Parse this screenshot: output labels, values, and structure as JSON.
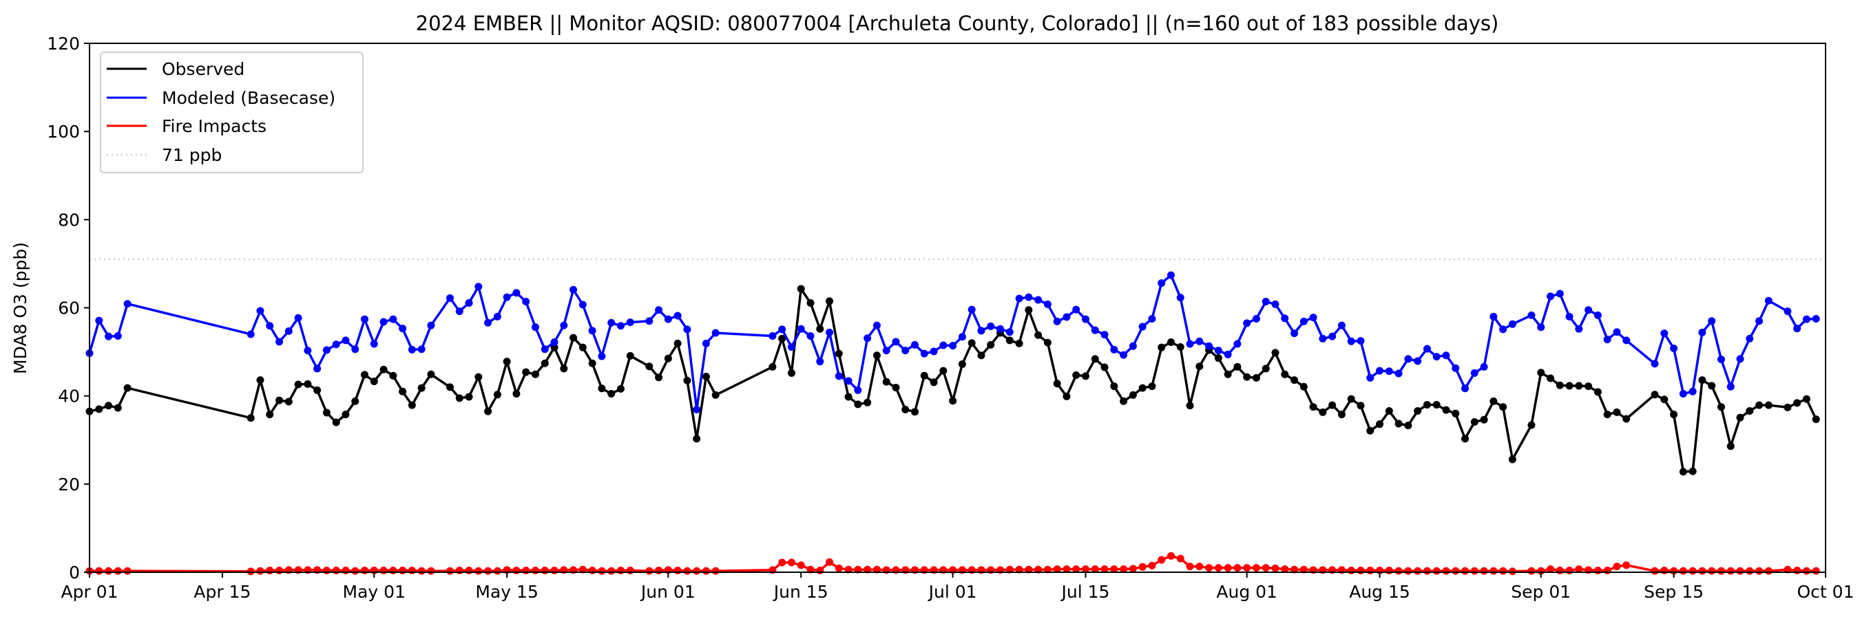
{
  "chart_data": {
    "type": "line",
    "title": "2024 EMBER || Monitor AQSID: 080077004 [Archuleta County, Colorado] || (n=160 out of 183 possible days)",
    "xlabel": "",
    "ylabel": "MDA8 O3 (ppb)",
    "x_unit": "days since 2024-04-01",
    "xlim": [
      0,
      183
    ],
    "ylim": [
      0,
      120
    ],
    "yticks": [
      "0",
      "20",
      "40",
      "60",
      "80",
      "100",
      "120"
    ],
    "xticks": [
      {
        "label": "Apr 01",
        "day": 0
      },
      {
        "label": "Apr 15",
        "day": 14
      },
      {
        "label": "May 01",
        "day": 30
      },
      {
        "label": "May 15",
        "day": 44
      },
      {
        "label": "Jun 01",
        "day": 61
      },
      {
        "label": "Jun 15",
        "day": 75
      },
      {
        "label": "Jul 01",
        "day": 91
      },
      {
        "label": "Jul 15",
        "day": 105
      },
      {
        "label": "Aug 01",
        "day": 122
      },
      {
        "label": "Aug 15",
        "day": 136
      },
      {
        "label": "Sep 01",
        "day": 153
      },
      {
        "label": "Sep 15",
        "day": 167
      },
      {
        "label": "Oct 01",
        "day": 183
      }
    ],
    "grid": false,
    "legend_position": "top-left",
    "x": [
      0,
      1,
      2,
      3,
      4,
      17,
      18,
      19,
      20,
      21,
      22,
      23,
      24,
      25,
      26,
      27,
      28,
      29,
      30,
      31,
      32,
      33,
      34,
      35,
      36,
      38,
      39,
      40,
      41,
      42,
      43,
      44,
      45,
      46,
      47,
      48,
      49,
      50,
      51,
      52,
      53,
      54,
      55,
      56,
      57,
      59,
      60,
      61,
      62,
      63,
      64,
      65,
      66,
      72,
      73,
      74,
      75,
      76,
      77,
      78,
      79,
      80,
      81,
      82,
      83,
      84,
      85,
      86,
      87,
      88,
      89,
      90,
      91,
      92,
      93,
      94,
      95,
      96,
      97,
      98,
      99,
      100,
      101,
      102,
      103,
      104,
      105,
      106,
      107,
      108,
      109,
      110,
      111,
      112,
      113,
      114,
      115,
      116,
      117,
      118,
      119,
      120,
      121,
      122,
      123,
      124,
      125,
      126,
      127,
      128,
      129,
      130,
      131,
      132,
      133,
      134,
      135,
      136,
      137,
      138,
      139,
      140,
      141,
      142,
      143,
      144,
      145,
      146,
      147,
      148,
      149,
      150,
      152,
      153,
      154,
      155,
      156,
      157,
      158,
      159,
      160,
      161,
      162,
      165,
      166,
      167,
      168,
      169,
      170,
      171,
      172,
      173,
      174,
      175,
      176,
      177,
      179,
      180,
      181,
      182
    ],
    "series": [
      {
        "name": "Observed",
        "color": "#000000",
        "values": [
          36.5,
          37,
          37.8,
          37.3,
          41.8,
          35,
          43.6,
          35.8,
          39,
          38.7,
          42.6,
          42.7,
          41.3,
          36.2,
          34,
          35.8,
          38.8,
          44.8,
          43.3,
          46,
          44.6,
          41,
          37.9,
          41.8,
          44.9,
          42,
          39.5,
          39.8,
          44.3,
          36.5,
          40.3,
          47.8,
          40.5,
          45.4,
          44.9,
          47.4,
          51,
          46.2,
          53.2,
          51,
          47.4,
          41.7,
          40.5,
          41.6,
          49.1,
          46.7,
          44.2,
          48.5,
          51.9,
          43.5,
          30.3,
          44.4,
          40.2,
          46.6,
          53,
          45.2,
          64.3,
          61.1,
          55.2,
          61.5,
          49.6,
          39.8,
          38.1,
          38.5,
          49.2,
          43.2,
          41.9,
          36.9,
          36.4,
          44.6,
          43.1,
          45.7,
          38.9,
          47.2,
          52,
          49.2,
          51.6,
          54.3,
          52.6,
          51.9,
          59.5,
          53.8,
          52.1,
          42.8,
          39.9,
          44.7,
          44.5,
          48.4,
          46.5,
          42.2,
          38.8,
          40.2,
          41.8,
          42.2,
          51,
          52.2,
          51.1,
          37.8,
          46.7,
          50.4,
          48.6,
          44.9,
          46.6,
          44.3,
          44.1,
          46.2,
          49.8,
          44.9,
          43.6,
          42.1,
          37.5,
          36.3,
          37.9,
          35.8,
          39.3,
          37.8,
          32.1,
          33.6,
          36.6,
          33.7,
          33.3,
          36.6,
          38,
          38,
          36.8,
          36,
          30.3,
          34.1,
          34.6,
          38.8,
          37.5,
          25.6,
          33.4,
          45.3,
          44,
          42.4,
          42.3,
          42.3,
          42.2,
          40.9,
          35.8,
          36.3,
          34.8,
          40.3,
          39.2,
          35.8,
          22.8,
          22.9,
          43.6,
          42.3,
          37.5,
          28.6,
          35.1,
          36.6,
          37.9,
          37.9,
          37.4,
          38.4,
          39.3,
          34.7
        ]
      },
      {
        "name": "Modeled (Basecase)",
        "color": "#0000ff",
        "values": [
          49.7,
          57.1,
          53.5,
          53.6,
          60.9,
          54,
          59.3,
          55.9,
          52.3,
          54.7,
          57.7,
          50.3,
          46.2,
          50.4,
          51.7,
          52.6,
          50.6,
          57.4,
          51.8,
          56.8,
          57.4,
          55.3,
          50.5,
          50.6,
          56,
          62.2,
          59.2,
          61.1,
          64.8,
          56.6,
          58,
          62.4,
          63.4,
          61.4,
          55.6,
          50.6,
          52.2,
          56,
          64.1,
          60.7,
          54.8,
          49,
          56.6,
          55.9,
          56.7,
          57,
          59.5,
          57.4,
          58.2,
          55.1,
          36.9,
          51.9,
          54.3,
          53.6,
          55.1,
          51.1,
          55.2,
          53.6,
          47.8,
          54.4,
          44.5,
          43.4,
          41.3,
          53.1,
          56,
          50.3,
          52.3,
          50.3,
          51.6,
          49.6,
          50.1,
          51.5,
          51.4,
          53.4,
          59.6,
          54.8,
          55.8,
          55.2,
          54.5,
          62.1,
          62.4,
          61.8,
          60.8,
          56.9,
          57.9,
          59.6,
          57.4,
          54.9,
          53.9,
          50.5,
          49.3,
          51.3,
          55.7,
          57.5,
          65.6,
          67.4,
          62.3,
          51.8,
          52.4,
          51.3,
          50.3,
          49.4,
          51.8,
          56.5,
          57.5,
          61.4,
          60.8,
          57.6,
          54.2,
          56.9,
          57.8,
          53,
          53.5,
          56,
          52.4,
          52.5,
          44.1,
          45.7,
          45.6,
          45.1,
          48.4,
          47.9,
          50.7,
          48.9,
          49.2,
          46.3,
          41.7,
          45.2,
          46.6,
          58,
          55.1,
          56.3,
          58.3,
          55.6,
          62.6,
          63.2,
          58,
          55.2,
          59.5,
          58.3,
          52.8,
          54.5,
          52.6,
          47.3,
          54.2,
          50.8,
          40.5,
          41,
          54.4,
          57,
          48.3,
          42.1,
          48.4,
          53,
          57,
          61.6,
          59.2,
          55.3,
          57.4,
          57.5
        ]
      },
      {
        "name": "Fire Impacts",
        "color": "#ff0000",
        "values": [
          0.3,
          0.3,
          0.3,
          0.3,
          0.3,
          0.2,
          0.3,
          0.4,
          0.4,
          0.5,
          0.5,
          0.5,
          0.5,
          0.4,
          0.4,
          0.4,
          0.3,
          0.4,
          0.4,
          0.4,
          0.4,
          0.4,
          0.4,
          0.3,
          0.3,
          0.3,
          0.4,
          0.4,
          0.3,
          0.3,
          0.3,
          0.5,
          0.4,
          0.4,
          0.4,
          0.4,
          0.4,
          0.5,
          0.5,
          0.6,
          0.4,
          0.3,
          0.3,
          0.4,
          0.4,
          0.3,
          0.4,
          0.5,
          0.4,
          0.3,
          0.3,
          0.3,
          0.3,
          0.5,
          2.2,
          2.2,
          1.6,
          0.6,
          0.4,
          2.3,
          0.9,
          0.6,
          0.6,
          0.6,
          0.6,
          0.5,
          0.5,
          0.5,
          0.5,
          0.5,
          0.5,
          0.5,
          0.5,
          0.5,
          0.5,
          0.5,
          0.5,
          0.5,
          0.6,
          0.6,
          0.6,
          0.6,
          0.6,
          0.7,
          0.7,
          0.7,
          0.7,
          0.7,
          0.7,
          0.7,
          0.7,
          0.8,
          1.2,
          1.5,
          2.8,
          3.7,
          3.1,
          1.3,
          1.3,
          1.0,
          1.0,
          1.0,
          1.0,
          1.0,
          1.0,
          1.0,
          0.9,
          0.7,
          0.6,
          0.6,
          0.5,
          0.5,
          0.5,
          0.5,
          0.4,
          0.4,
          0.4,
          0.4,
          0.4,
          0.3,
          0.3,
          0.3,
          0.3,
          0.3,
          0.3,
          0.3,
          0.3,
          0.3,
          0.3,
          0.3,
          0.3,
          0.2,
          0.3,
          0.3,
          0.7,
          0.4,
          0.4,
          0.7,
          0.5,
          0.4,
          0.4,
          1.3,
          1.6,
          0.3,
          0.4,
          0.3,
          0.3,
          0.3,
          0.3,
          0.3,
          0.3,
          0.3,
          0.3,
          0.3,
          0.3,
          0.3,
          0.6,
          0.4,
          0.3,
          0.3
        ]
      }
    ],
    "reference_line": {
      "label": "71 ppb",
      "value": 71,
      "color": "#d3d3d3"
    },
    "legend": [
      "Observed",
      "Modeled (Basecase)",
      "Fire Impacts",
      "71 ppb"
    ]
  }
}
